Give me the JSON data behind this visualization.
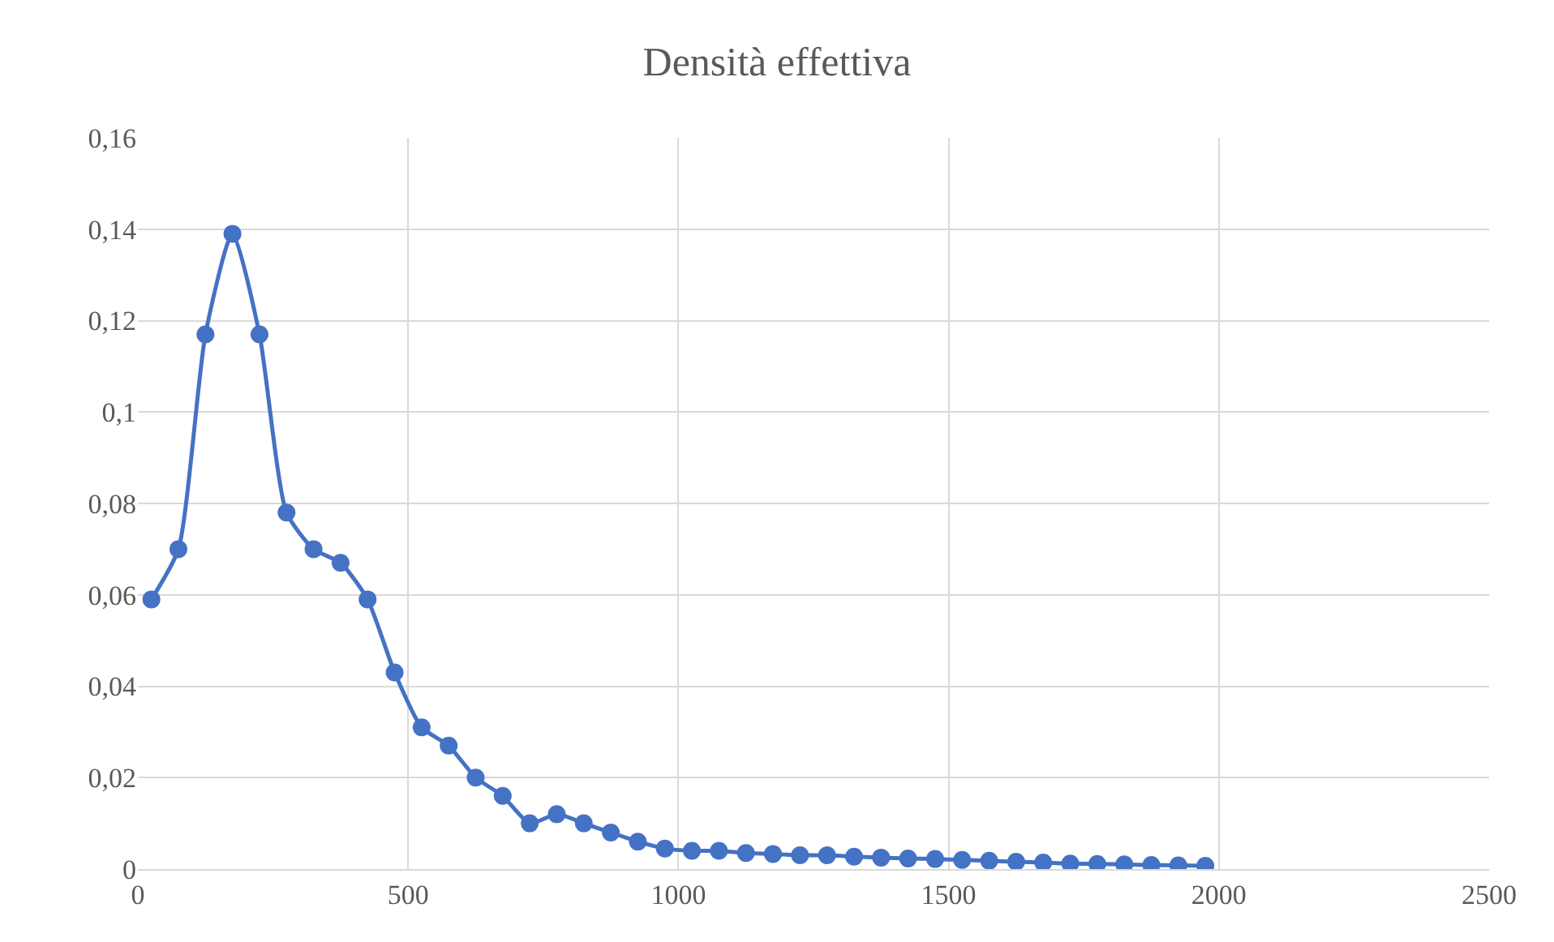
{
  "chart_data": {
    "type": "line",
    "title": "Densità effettiva",
    "x": [
      25,
      75,
      125,
      175,
      225,
      275,
      325,
      375,
      425,
      475,
      525,
      575,
      625,
      675,
      725,
      775,
      825,
      875,
      925,
      975,
      1025,
      1075,
      1125,
      1175,
      1225,
      1275,
      1325,
      1375,
      1425,
      1475,
      1525,
      1575,
      1625,
      1675,
      1725,
      1775,
      1825,
      1875,
      1925,
      1975
    ],
    "series": [
      {
        "color": "#4472c4",
        "values": [
          0.059,
          0.07,
          0.117,
          0.139,
          0.117,
          0.078,
          0.07,
          0.067,
          0.059,
          0.043,
          0.031,
          0.027,
          0.02,
          0.016,
          0.01,
          0.012,
          0.01,
          0.008,
          0.006,
          0.0045,
          0.004,
          0.004,
          0.0035,
          0.0033,
          0.003,
          0.003,
          0.0027,
          0.0025,
          0.0023,
          0.0022,
          0.002,
          0.0018,
          0.0016,
          0.0014,
          0.0012,
          0.0011,
          0.001,
          0.0009,
          0.0008,
          0.0007
        ]
      }
    ],
    "xlim": [
      0,
      2500
    ],
    "xticks": [
      0,
      500,
      1000,
      1500,
      2000,
      2500
    ],
    "ylim": [
      0,
      0.16
    ],
    "yticks": [
      0,
      {
        "value": 0.02,
        "label": "0,02"
      },
      {
        "value": 0.04,
        "label": "0,04"
      },
      {
        "value": 0.06,
        "label": "0,06"
      },
      {
        "value": 0.08,
        "label": "0,08"
      },
      {
        "value": 0.1,
        "label": "0,1"
      },
      {
        "value": 0.12,
        "label": "0,12"
      },
      {
        "value": 0.14,
        "label": "0,14"
      },
      {
        "value": 0.16,
        "label": "0,16"
      }
    ],
    "grid": true,
    "marker": "circle",
    "line_style": "solid"
  }
}
